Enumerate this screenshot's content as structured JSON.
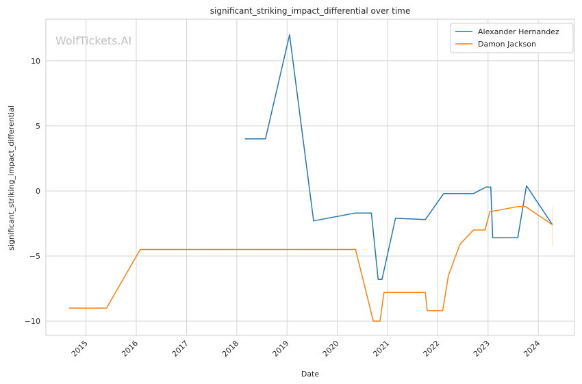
{
  "chart_data": {
    "type": "line",
    "title": "significant_striking_impact_differential over time",
    "xlabel": "Date",
    "ylabel": "significant_striking_impact_differential",
    "xlim": [
      "2014-03-15",
      "2024-09-20"
    ],
    "ylim": [
      -11.1,
      13.2
    ],
    "x_ticks": [
      "2015",
      "2016",
      "2017",
      "2018",
      "2019",
      "2020",
      "2021",
      "2022",
      "2023",
      "2024"
    ],
    "y_ticks": [
      -10,
      -5,
      0,
      5,
      10
    ],
    "grid": true,
    "legend": "top-right",
    "watermark": "WolfTickets.AI",
    "series": [
      {
        "name": "Alexander Hernandez",
        "color": "#1f77b4",
        "points": [
          [
            "2018-03-01",
            4.0
          ],
          [
            "2018-07-28",
            4.0
          ],
          [
            "2019-01-19",
            12.0
          ],
          [
            "2019-07-13",
            -2.3
          ],
          [
            "2020-05-09",
            -1.7
          ],
          [
            "2020-09-05",
            -1.7
          ],
          [
            "2020-10-24",
            -6.8
          ],
          [
            "2020-11-21",
            -6.8
          ],
          [
            "2021-02-27",
            -2.1
          ],
          [
            "2021-10-02",
            -2.2
          ],
          [
            "2022-02-12",
            -0.2
          ],
          [
            "2022-09-17",
            -0.2
          ],
          [
            "2022-12-17",
            0.3
          ],
          [
            "2023-01-21",
            0.3
          ],
          [
            "2023-02-04",
            -3.6
          ],
          [
            "2023-08-05",
            -3.6
          ],
          [
            "2023-10-07",
            0.4
          ],
          [
            "2024-04-13",
            -2.6
          ]
        ]
      },
      {
        "name": "Damon Jackson",
        "color": "#ff7f0e",
        "points": [
          [
            "2014-08-30",
            -9.0
          ],
          [
            "2015-05-30",
            -9.0
          ],
          [
            "2016-01-30",
            -4.5
          ],
          [
            "2020-05-13",
            -4.5
          ],
          [
            "2020-09-19",
            -10.0
          ],
          [
            "2020-11-07",
            -10.0
          ],
          [
            "2020-12-05",
            -7.8
          ],
          [
            "2021-10-02",
            -7.8
          ],
          [
            "2021-10-16",
            -9.2
          ],
          [
            "2022-02-05",
            -9.2
          ],
          [
            "2022-03-19",
            -6.5
          ],
          [
            "2022-06-11",
            -4.1
          ],
          [
            "2022-09-17",
            -3.0
          ],
          [
            "2022-12-10",
            -3.0
          ],
          [
            "2023-01-14",
            -1.6
          ],
          [
            "2023-08-05",
            -1.2
          ],
          [
            "2023-09-30",
            -1.2
          ],
          [
            "2024-04-13",
            -2.6
          ]
        ]
      }
    ]
  }
}
